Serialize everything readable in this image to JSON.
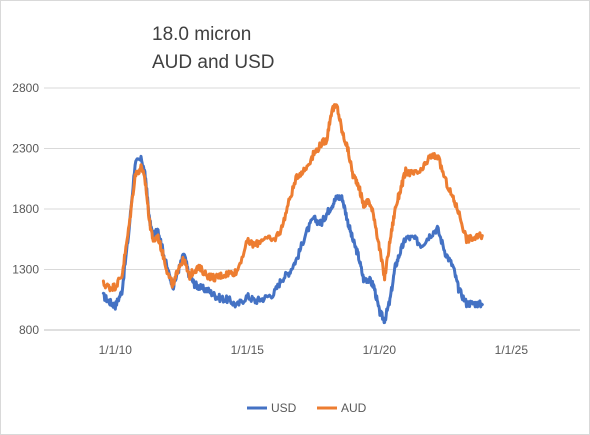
{
  "chart_data": {
    "type": "line",
    "title": [
      "18.0 micron",
      "AUD and USD"
    ],
    "xlabel": "",
    "ylabel": "",
    "ylim": [
      800,
      2800
    ],
    "yticks": [
      800,
      1300,
      1800,
      2300,
      2800
    ],
    "xticks": [
      {
        "label": "1/1/10",
        "value": 2010.0
      },
      {
        "label": "1/1/15",
        "value": 2015.0
      },
      {
        "label": "1/1/20",
        "value": 2020.0
      },
      {
        "label": "1/1/25",
        "value": 2025.0
      }
    ],
    "xlim": [
      2007.3,
      2027.6
    ],
    "grid": "horizontal",
    "legend_position": "bottom",
    "series": [
      {
        "name": "USD",
        "color": "#4472c4",
        "x": [
          2009.55,
          2009.8,
          2010.0,
          2010.25,
          2010.5,
          2010.75,
          2011.0,
          2011.15,
          2011.3,
          2011.45,
          2011.6,
          2011.8,
          2012.0,
          2012.2,
          2012.4,
          2012.6,
          2012.8,
          2013.0,
          2013.2,
          2013.5,
          2013.8,
          2014.0,
          2014.3,
          2014.6,
          2015.0,
          2015.3,
          2015.6,
          2016.0,
          2016.3,
          2016.6,
          2016.9,
          2017.2,
          2017.5,
          2017.8,
          2018.0,
          2018.2,
          2018.4,
          2018.6,
          2018.8,
          2019.0,
          2019.2,
          2019.4,
          2019.6,
          2019.8,
          2020.0,
          2020.2,
          2020.4,
          2020.6,
          2020.8,
          2021.0,
          2021.3,
          2021.6,
          2021.9,
          2022.2,
          2022.5,
          2022.8,
          2023.0,
          2023.3,
          2023.6,
          2023.9
        ],
        "values": [
          1080,
          1030,
          1000,
          1120,
          1580,
          2180,
          2210,
          2050,
          1700,
          1560,
          1650,
          1460,
          1280,
          1160,
          1300,
          1430,
          1250,
          1180,
          1150,
          1130,
          1080,
          1060,
          1050,
          1000,
          1080,
          1040,
          1060,
          1100,
          1220,
          1280,
          1400,
          1590,
          1720,
          1680,
          1760,
          1830,
          1900,
          1890,
          1700,
          1540,
          1420,
          1220,
          1220,
          1160,
          950,
          880,
          1040,
          1320,
          1450,
          1560,
          1560,
          1500,
          1580,
          1640,
          1440,
          1320,
          1140,
          1020,
          1020,
          1010
        ]
      },
      {
        "name": "AUD",
        "color": "#ed7d31",
        "x": [
          2009.55,
          2009.8,
          2010.0,
          2010.25,
          2010.5,
          2010.75,
          2011.0,
          2011.15,
          2011.3,
          2011.45,
          2011.6,
          2011.8,
          2012.0,
          2012.2,
          2012.4,
          2012.6,
          2012.8,
          2013.0,
          2013.2,
          2013.5,
          2013.8,
          2014.0,
          2014.3,
          2014.6,
          2015.0,
          2015.3,
          2015.6,
          2016.0,
          2016.3,
          2016.6,
          2016.9,
          2017.2,
          2017.5,
          2017.8,
          2018.0,
          2018.2,
          2018.4,
          2018.6,
          2018.8,
          2019.0,
          2019.2,
          2019.4,
          2019.6,
          2019.8,
          2020.0,
          2020.2,
          2020.4,
          2020.6,
          2020.8,
          2021.0,
          2021.3,
          2021.6,
          2021.9,
          2022.2,
          2022.5,
          2022.8,
          2023.0,
          2023.3,
          2023.6,
          2023.9
        ],
        "values": [
          1180,
          1150,
          1160,
          1250,
          1620,
          2080,
          2150,
          2000,
          1690,
          1530,
          1580,
          1430,
          1260,
          1160,
          1330,
          1380,
          1240,
          1300,
          1310,
          1250,
          1230,
          1250,
          1270,
          1280,
          1530,
          1500,
          1560,
          1540,
          1640,
          1880,
          2080,
          2130,
          2250,
          2340,
          2370,
          2620,
          2650,
          2430,
          2300,
          2080,
          2010,
          1830,
          1870,
          1740,
          1480,
          1230,
          1530,
          1800,
          1960,
          2110,
          2090,
          2110,
          2230,
          2240,
          2040,
          1880,
          1780,
          1550,
          1560,
          1580
        ]
      }
    ]
  }
}
